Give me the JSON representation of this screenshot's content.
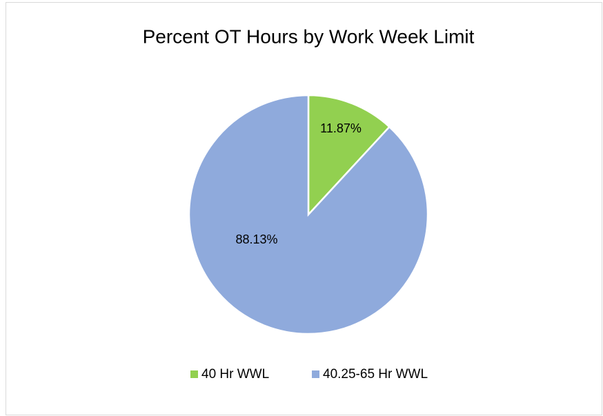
{
  "chart_data": {
    "type": "pie",
    "title": "Percent OT Hours by Work Week Limit",
    "categories": [
      "40 Hr WWL",
      "40.25-65 Hr WWL"
    ],
    "values": [
      11.87,
      88.13
    ],
    "value_labels": [
      "11.87%",
      "88.13%"
    ],
    "colors": [
      "#92d050",
      "#8faadc"
    ],
    "legend": "bottom"
  }
}
